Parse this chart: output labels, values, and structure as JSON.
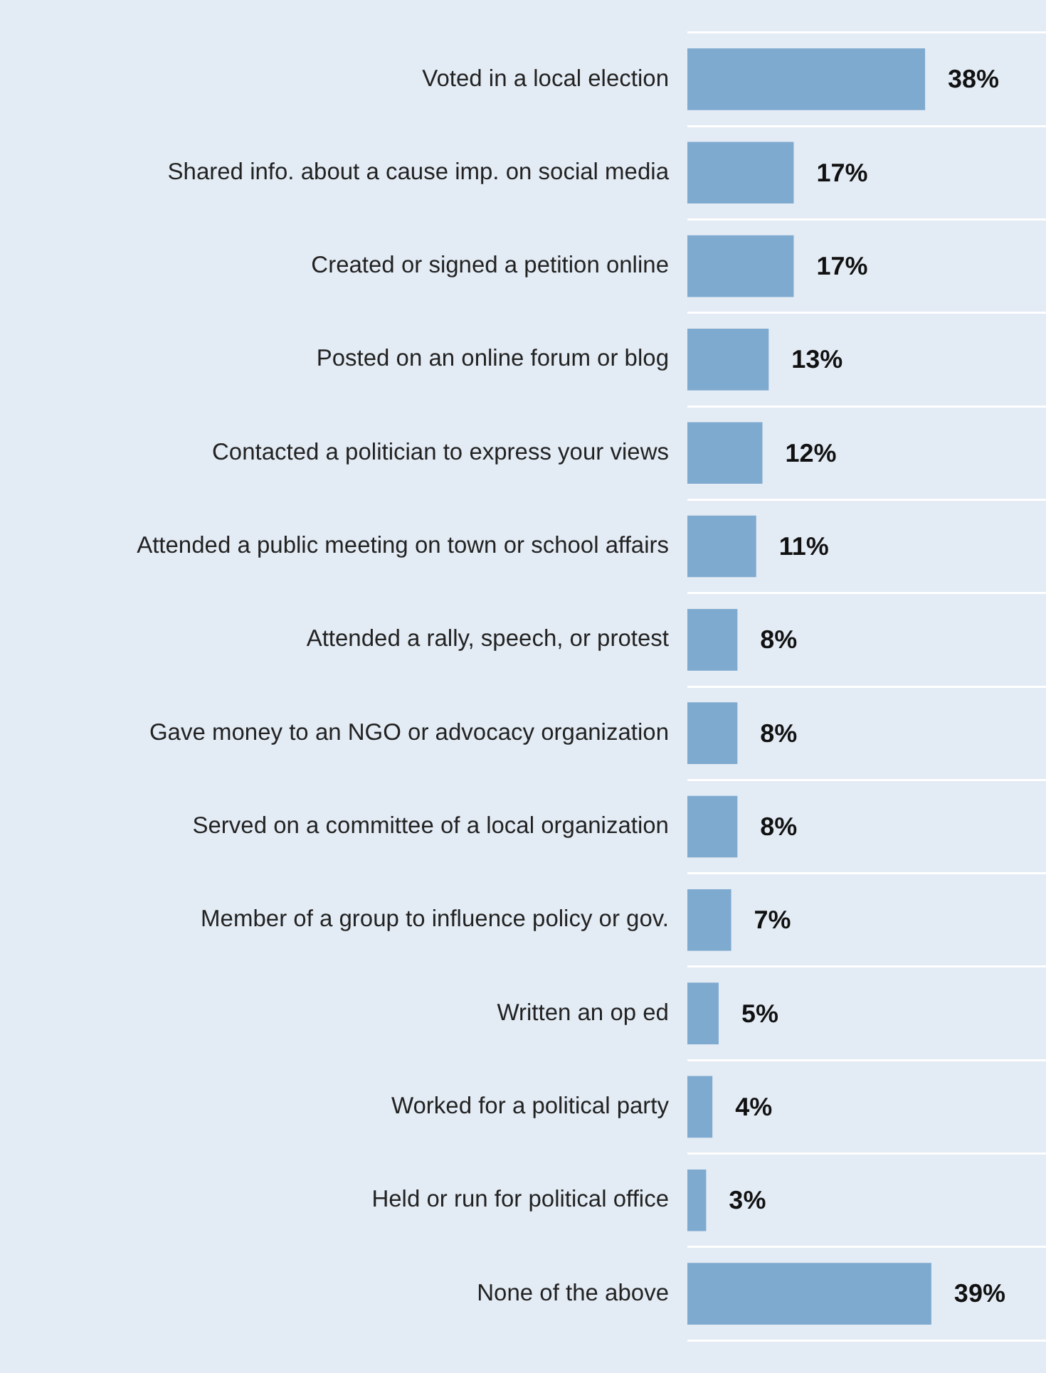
{
  "chart_data": {
    "type": "bar",
    "orientation": "horizontal",
    "categories": [
      "Voted in a local election",
      "Shared info. about a cause imp. on social media",
      "Created or signed a petition online",
      "Posted on an online forum or blog",
      "Contacted a politician to express your views",
      "Attended a public meeting on town or school affairs",
      "Attended a rally, speech, or protest",
      "Gave money to an NGO or advocacy organization",
      "Served on a committee of a local organization",
      "Member of a group to influence policy or gov.",
      "Written an op ed",
      "Worked for a political party",
      "Held or run for political office",
      "None of the above"
    ],
    "values": [
      38,
      17,
      17,
      13,
      12,
      11,
      8,
      8,
      8,
      7,
      5,
      4,
      3,
      39
    ],
    "value_labels": [
      "38%",
      "17%",
      "17%",
      "13%",
      "12%",
      "11%",
      "8%",
      "8%",
      "8%",
      "7%",
      "5%",
      "4%",
      "3%",
      "39%"
    ],
    "color": "#7faacf",
    "tick_labels": "y",
    "grid": "y",
    "legend": false
  }
}
